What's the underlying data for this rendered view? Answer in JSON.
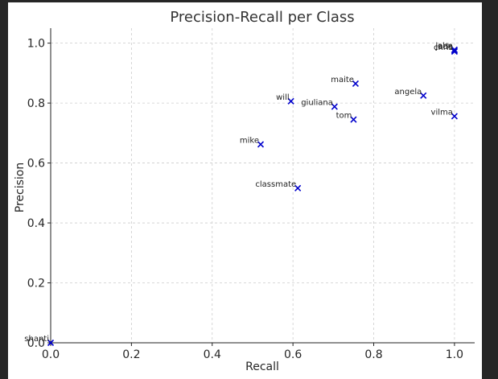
{
  "chart_data": {
    "type": "scatter",
    "title": "Precision-Recall per Class",
    "xlabel": "Recall",
    "ylabel": "Precision",
    "xlim": [
      0.0,
      1.05
    ],
    "ylim": [
      0.0,
      1.05
    ],
    "x_ticks": [
      "0.0",
      "0.2",
      "0.4",
      "0.6",
      "0.8",
      "1.0"
    ],
    "y_ticks": [
      "0.0",
      "0.2",
      "0.4",
      "0.6",
      "0.8",
      "1.0"
    ],
    "x_tick_values": [
      0.0,
      0.2,
      0.4,
      0.6,
      0.8,
      1.0
    ],
    "y_tick_values": [
      0.0,
      0.2,
      0.4,
      0.6,
      0.8,
      1.0
    ],
    "grid": true,
    "marker": "x",
    "marker_color": "#0000cc",
    "points": [
      {
        "label": "jade",
        "x": 1.0,
        "y": 0.975
      },
      {
        "label": "john",
        "x": 1.0,
        "y": 0.978
      },
      {
        "label": "chris",
        "x": 1.0,
        "y": 0.972
      },
      {
        "label": "maite",
        "x": 0.755,
        "y": 0.865
      },
      {
        "label": "angela",
        "x": 0.923,
        "y": 0.825
      },
      {
        "label": "will",
        "x": 0.595,
        "y": 0.806
      },
      {
        "label": "giuliana",
        "x": 0.703,
        "y": 0.788
      },
      {
        "label": "vilma",
        "x": 1.0,
        "y": 0.756
      },
      {
        "label": "tom",
        "x": 0.75,
        "y": 0.745
      },
      {
        "label": "mike",
        "x": 0.52,
        "y": 0.662
      },
      {
        "label": "classmate",
        "x": 0.612,
        "y": 0.516
      },
      {
        "label": "shanti",
        "x": 0.0,
        "y": 0.0
      }
    ]
  }
}
